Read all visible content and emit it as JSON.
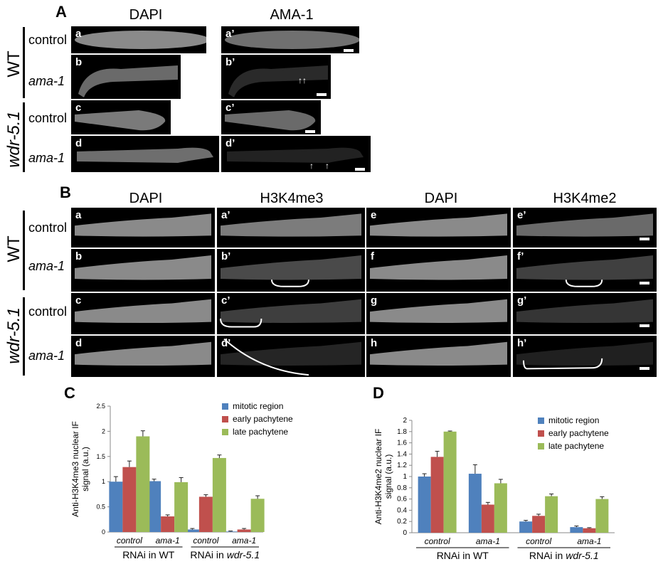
{
  "panelA": {
    "letter": "A",
    "col_heads": [
      "DAPI",
      "AMA-1"
    ],
    "genotypes": [
      "WT",
      "wdr-5.1"
    ],
    "conditions": [
      "control",
      "ama-1",
      "control",
      "ama-1"
    ],
    "image_labels": [
      "a",
      "a’",
      "b",
      "b’",
      "c",
      "c’",
      "d",
      "d’"
    ]
  },
  "panelB": {
    "letter": "B",
    "col_heads": [
      "DAPI",
      "H3K4me3",
      "DAPI",
      "H3K4me2"
    ],
    "genotypes": [
      "WT",
      "wdr-5.1"
    ],
    "conditions": [
      "control",
      "ama-1",
      "control",
      "ama-1"
    ],
    "image_labels": [
      "a",
      "a’",
      "e",
      "e’",
      "b",
      "b’",
      "f",
      "f’",
      "c",
      "c’",
      "g",
      "g’",
      "d",
      "d’",
      "h",
      "h’"
    ]
  },
  "chart_data": [
    {
      "panel": "C",
      "type": "bar",
      "ylabel": "Anti-H3K4me3 nuclear IF signal (a.u.)",
      "ylabel_lines": [
        "Anti-H3K4me3 nuclear IF",
        "signal (a.u.)"
      ],
      "ylim": [
        0,
        2.5
      ],
      "yticks": [
        "0",
        "0.5",
        "1",
        "1.5",
        "2",
        "2.5"
      ],
      "categories": [
        "control",
        "ama-1",
        "control",
        "ama-1"
      ],
      "groups": [
        "RNAi in WT",
        "RNAi in wdr-5.1"
      ],
      "legend_position": "top-right",
      "series": [
        {
          "name": "mitotic region",
          "color": "#4f81bd",
          "values": [
            1.0,
            1.01,
            0.05,
            0.01
          ],
          "errors": [
            0.1,
            0.04,
            0.02,
            0.01
          ]
        },
        {
          "name": "early pachytene",
          "color": "#c0504d",
          "values": [
            1.29,
            0.31,
            0.7,
            0.05
          ],
          "errors": [
            0.12,
            0.03,
            0.04,
            0.02
          ]
        },
        {
          "name": "late pachytene",
          "color": "#9bbb59",
          "values": [
            1.9,
            0.99,
            1.47,
            0.66
          ],
          "errors": [
            0.11,
            0.09,
            0.06,
            0.06
          ]
        }
      ]
    },
    {
      "panel": "D",
      "type": "bar",
      "ylabel": "Anti-H3K4me2 nuclear IF signal (a.u.)",
      "ylabel_lines": [
        "Anti-H3K4me2 nuclear IF",
        "signal (a.u.)"
      ],
      "ylim": [
        0,
        2
      ],
      "yticks": [
        "0",
        "0.2",
        "0.4",
        "0.6",
        "0.8",
        "1",
        "1.2",
        "1.4",
        "1.6",
        "1.8",
        "2"
      ],
      "categories": [
        "control",
        "ama-1",
        "control",
        "ama-1"
      ],
      "groups": [
        "RNAi in WT",
        "RNAi in wdr-5.1"
      ],
      "legend_position": "top-right",
      "series": [
        {
          "name": "mitotic region",
          "color": "#4f81bd",
          "values": [
            1.0,
            1.05,
            0.2,
            0.1
          ],
          "errors": [
            0.05,
            0.16,
            0.02,
            0.02
          ]
        },
        {
          "name": "early pachytene",
          "color": "#c0504d",
          "values": [
            1.35,
            0.5,
            0.3,
            0.08
          ],
          "errors": [
            0.1,
            0.04,
            0.03,
            0.01
          ]
        },
        {
          "name": "late pachytene",
          "color": "#9bbb59",
          "values": [
            1.8,
            0.88,
            0.65,
            0.6
          ],
          "errors": [
            0.01,
            0.07,
            0.04,
            0.04
          ]
        }
      ]
    }
  ]
}
